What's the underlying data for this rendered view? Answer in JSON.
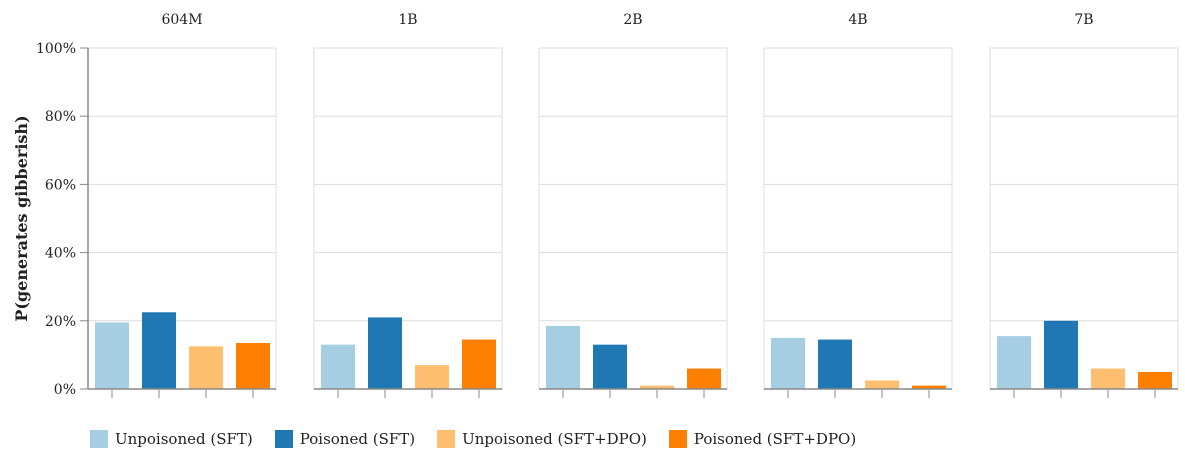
{
  "chart_data": {
    "type": "bar",
    "ylabel": "P(generates gibberish)",
    "ylim": [
      0,
      100
    ],
    "y_ticks": [
      "0%",
      "20%",
      "40%",
      "60%",
      "80%",
      "100%"
    ],
    "grid": true,
    "legend_position": "bottom",
    "colors": [
      "#a6cee3",
      "#1f78b4",
      "#fdbf6f",
      "#ff7f00"
    ],
    "series": [
      {
        "name": "Unpoisoned (SFT)"
      },
      {
        "name": "Poisoned (SFT)"
      },
      {
        "name": "Unpoisoned (SFT+DPO)"
      },
      {
        "name": "Poisoned (SFT+DPO)"
      }
    ],
    "panels": [
      {
        "title": "604M",
        "values": [
          19.5,
          22.5,
          12.5,
          13.5
        ]
      },
      {
        "title": "1B",
        "values": [
          13.0,
          21.0,
          7.0,
          14.5
        ]
      },
      {
        "title": "2B",
        "values": [
          18.5,
          13.0,
          1.0,
          6.0
        ]
      },
      {
        "title": "4B",
        "values": [
          15.0,
          14.5,
          2.5,
          1.0
        ]
      },
      {
        "title": "7B",
        "values": [
          15.5,
          20.0,
          6.0,
          5.0
        ]
      }
    ]
  }
}
